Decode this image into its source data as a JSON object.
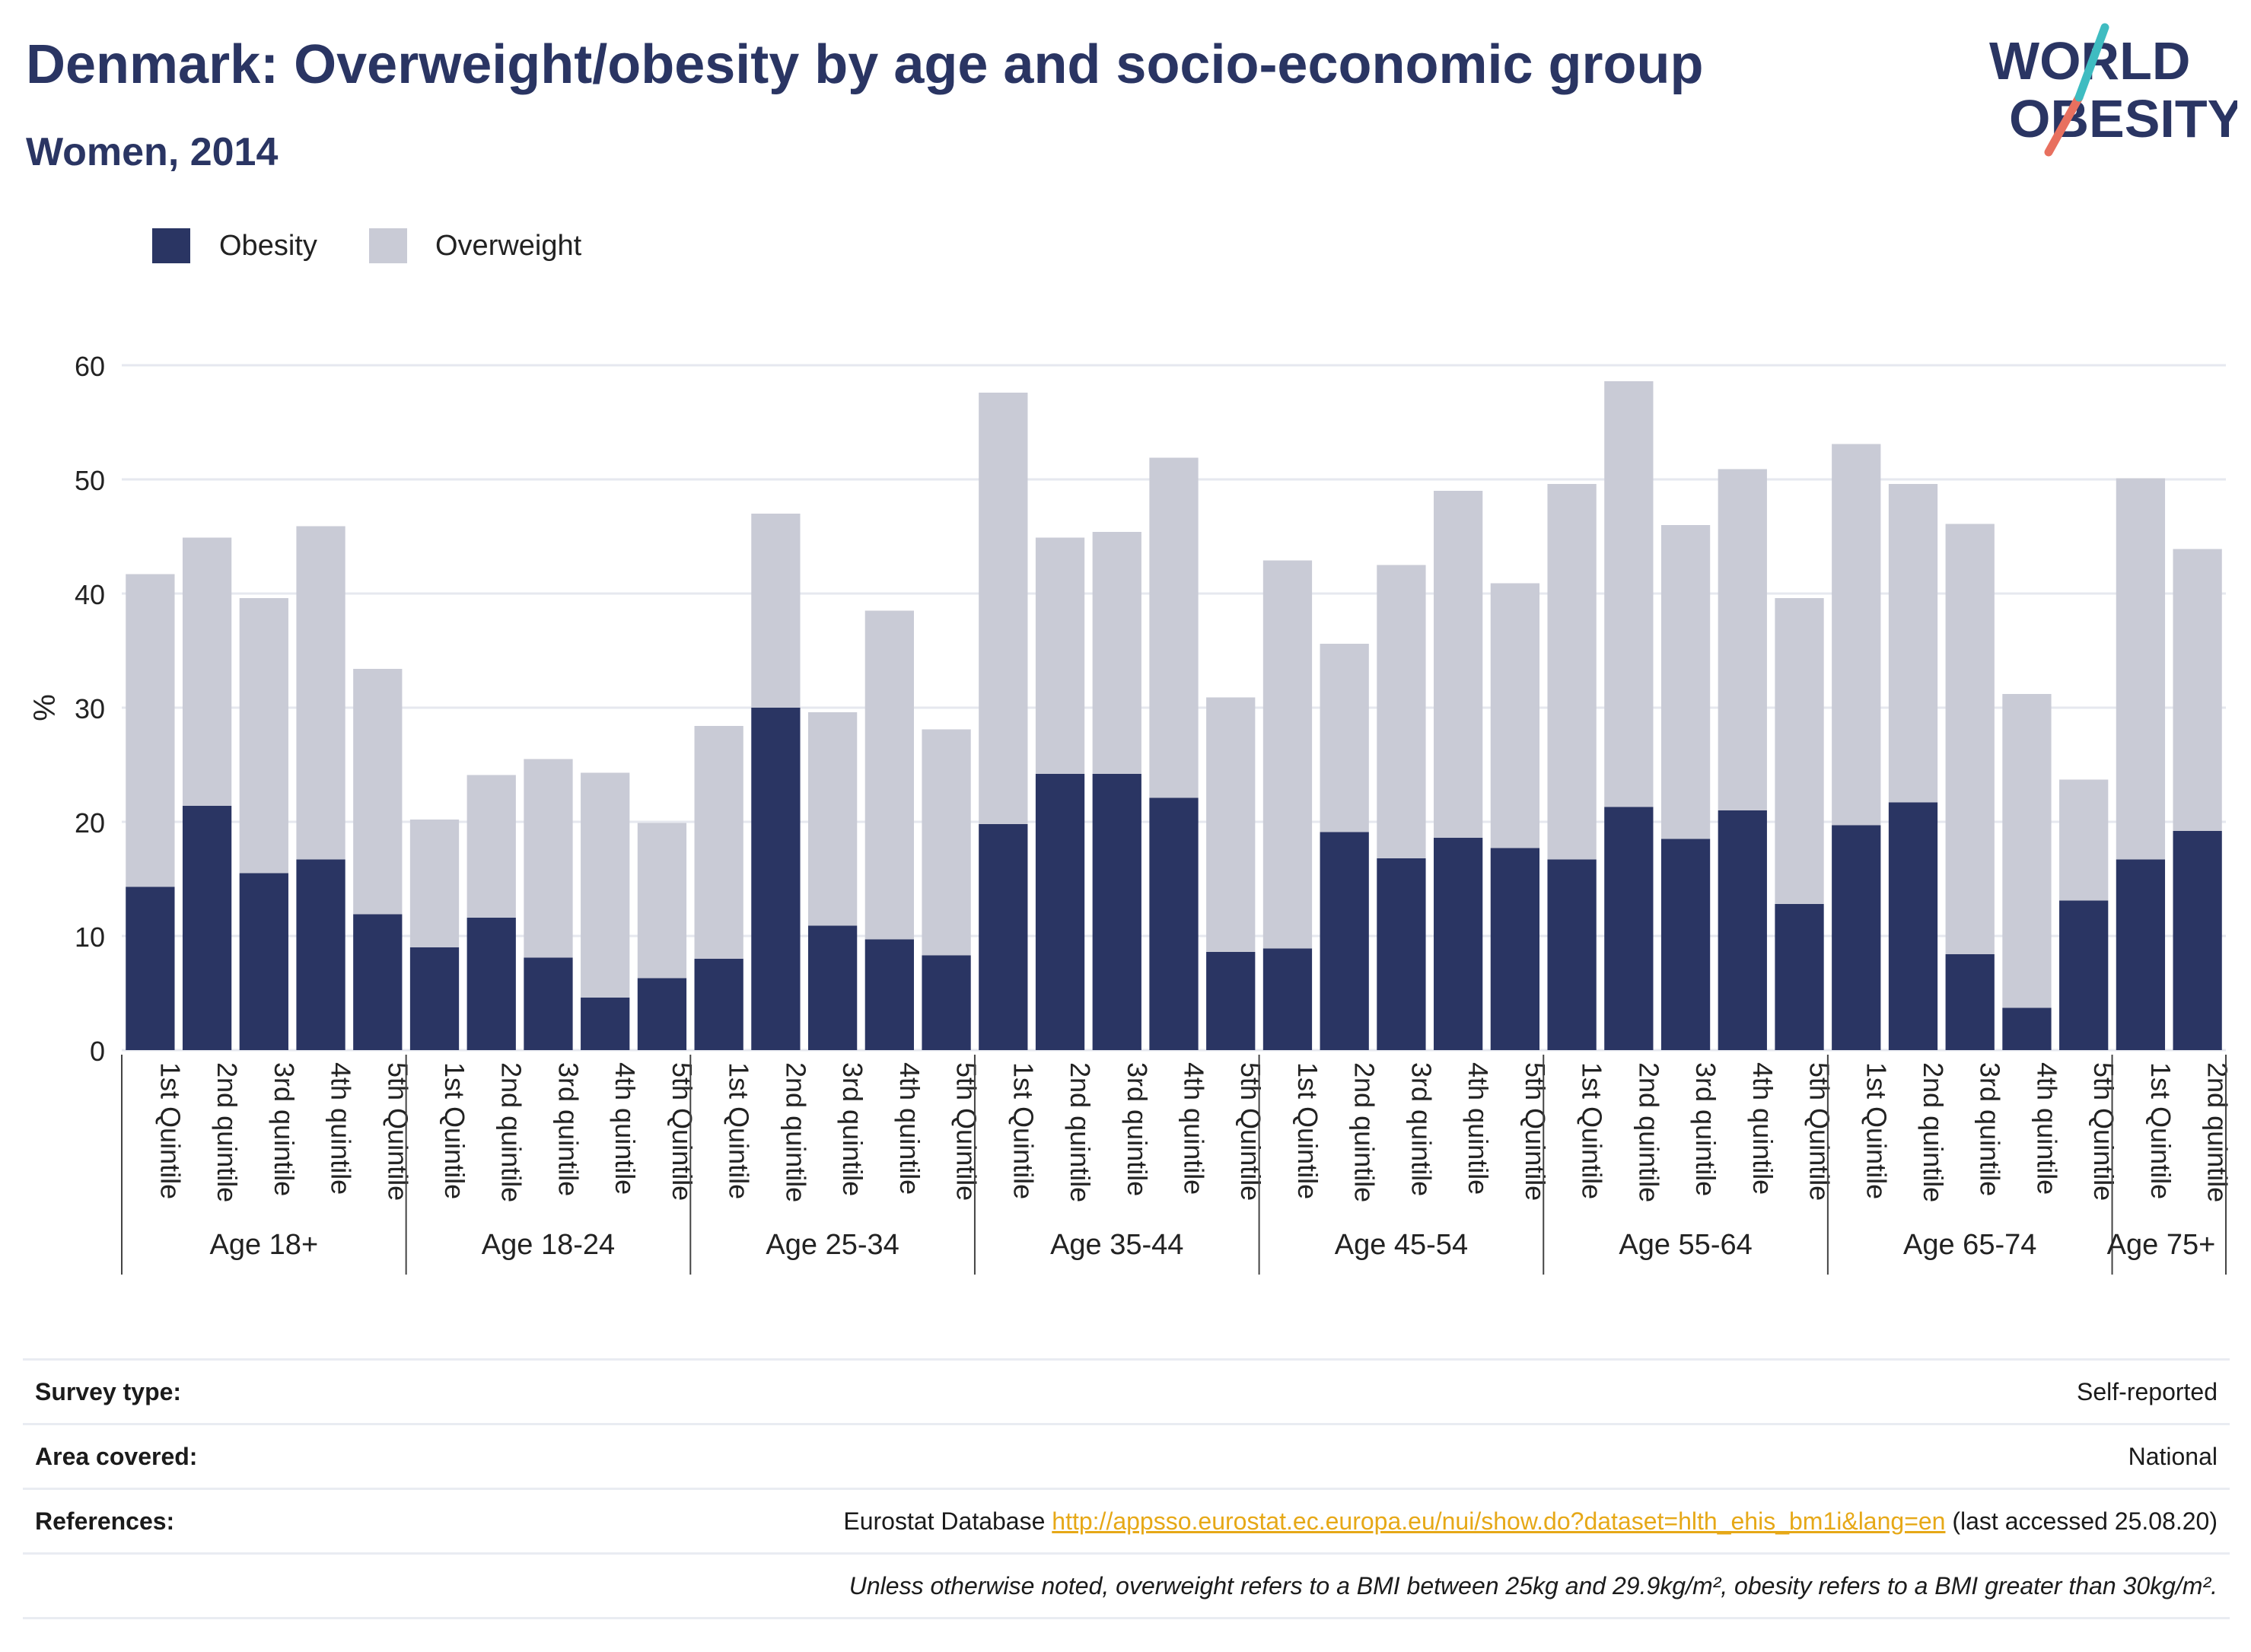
{
  "header": {
    "title": "Denmark: Overweight/obesity by age and socio-economic group",
    "subtitle": "Women, 2014"
  },
  "logo": {
    "line1": "WORLD",
    "line2": "OBESITY",
    "colors": {
      "text": "#2a3563",
      "slash_red": "#e8705f",
      "slash_teal": "#3fbcc1"
    }
  },
  "colors": {
    "obesity": "#2a3563",
    "overweight": "#c9cbd6",
    "grid": "#e6e8ef",
    "axis_text": "#222222"
  },
  "chart_data": {
    "type": "bar",
    "stacked": true,
    "ylabel": "%",
    "ylim": [
      0,
      60
    ],
    "yticks": [
      0,
      10,
      20,
      30,
      40,
      50,
      60
    ],
    "grid": true,
    "legend_position": "top-left",
    "groups": [
      {
        "label": "Age 18+",
        "categories": [
          "1st Quintile",
          "2nd quintile",
          "3rd quintile",
          "4th quintile",
          "5th Quintile"
        ]
      },
      {
        "label": "Age 18-24",
        "categories": [
          "1st Quintile",
          "2nd quintile",
          "3rd quintile",
          "4th quintile",
          "5th Quintile"
        ]
      },
      {
        "label": "Age 25-34",
        "categories": [
          "1st Quintile",
          "2nd quintile",
          "3rd quintile",
          "4th quintile",
          "5th Quintile"
        ]
      },
      {
        "label": "Age 35-44",
        "categories": [
          "1st Quintile",
          "2nd quintile",
          "3rd quintile",
          "4th quintile",
          "5th Quintile"
        ]
      },
      {
        "label": "Age 45-54",
        "categories": [
          "1st Quintile",
          "2nd quintile",
          "3rd quintile",
          "4th quintile",
          "5th Quintile"
        ]
      },
      {
        "label": "Age 55-64",
        "categories": [
          "1st Quintile",
          "2nd quintile",
          "3rd quintile",
          "4th quintile",
          "5th Quintile"
        ]
      },
      {
        "label": "Age 65-74",
        "categories": [
          "1st Quintile",
          "2nd quintile",
          "3rd quintile",
          "4th quintile",
          "5th Quintile"
        ]
      },
      {
        "label": "Age 75+",
        "categories": [
          "1st Quintile",
          "2nd quintile"
        ]
      }
    ],
    "series": [
      {
        "name": "Obesity",
        "values": [
          14.3,
          21.4,
          15.5,
          16.7,
          11.9,
          9.0,
          11.6,
          8.1,
          4.6,
          6.3,
          8.0,
          30.0,
          10.9,
          9.7,
          8.3,
          19.8,
          24.2,
          24.2,
          22.1,
          8.6,
          8.9,
          19.1,
          16.8,
          18.6,
          17.7,
          16.7,
          21.3,
          18.5,
          21.0,
          12.8,
          19.7,
          21.7,
          8.4,
          3.7,
          13.1,
          16.7,
          19.2
        ]
      },
      {
        "name": "Overweight",
        "values": [
          27.4,
          23.5,
          24.1,
          29.2,
          21.5,
          11.2,
          12.5,
          17.4,
          19.7,
          13.6,
          20.4,
          17.0,
          18.7,
          28.8,
          19.8,
          37.8,
          20.7,
          21.2,
          29.8,
          22.3,
          34.0,
          16.5,
          25.7,
          30.4,
          23.2,
          32.9,
          37.3,
          27.5,
          29.9,
          26.8,
          33.4,
          27.9,
          37.7,
          27.5,
          10.6,
          33.4,
          24.7
        ]
      }
    ]
  },
  "info": {
    "survey_label": "Survey type:",
    "survey_value": "Self-reported",
    "area_label": "Area covered:",
    "area_value": "National",
    "references_label": "References:",
    "ref_prefix": "Eurostat Database",
    "ref_link": "http://appsso.eurostat.ec.europa.eu/nui/show.do?dataset=hlth_ehis_bm1i&lang=en",
    "ref_suffix": "(last accessed 25.08.20)",
    "note": "Unless otherwise noted, overweight refers to a BMI between 25kg and 29.9kg/m², obesity refers to a BMI greater than 30kg/m²."
  }
}
